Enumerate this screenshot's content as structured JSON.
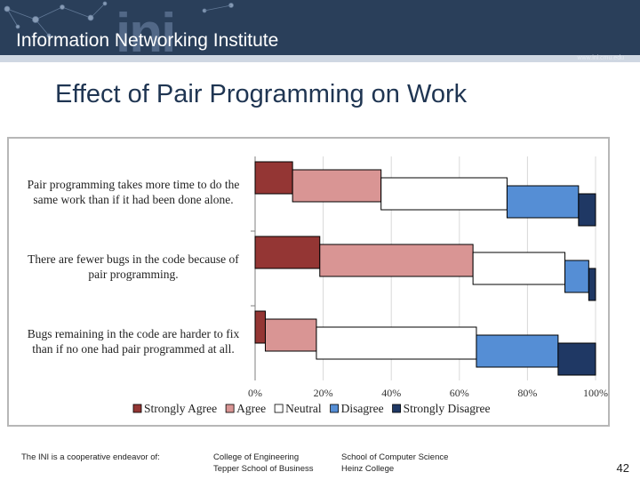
{
  "header": {
    "logo_text": "ini",
    "institute": "Information Networking Institute",
    "url": "www.ini.cmu.edu"
  },
  "slide": {
    "title": "Effect of Pair Programming on Work",
    "page_number": "42"
  },
  "footer": {
    "lead": "The INI is a cooperative endeavor of:",
    "col1": [
      "College of Engineering",
      "Tepper School of Business"
    ],
    "col2": [
      "School of Computer Science",
      "Heinz College"
    ]
  },
  "colors": {
    "banner": "#2a3f5a",
    "title": "#1f3552",
    "strongly_agree": "#943634",
    "agree": "#d99594",
    "neutral": "#ffffff",
    "disagree": "#558ed5",
    "strongly_disagree": "#1f3864"
  },
  "chart_data": {
    "type": "bar",
    "orientation": "horizontal",
    "stacked": true,
    "categories": [
      [
        "Pair programming takes more time to do the",
        "same work than if it had been done alone."
      ],
      [
        "There are fewer bugs in the code because of",
        "pair programming."
      ],
      [
        "Bugs remaining in the code are harder to fix",
        "than if no one had pair programmed at all."
      ]
    ],
    "series": [
      {
        "name": "Strongly Agree",
        "values": [
          11,
          19,
          3
        ]
      },
      {
        "name": "Agree",
        "values": [
          26,
          45,
          15
        ]
      },
      {
        "name": "Neutral",
        "values": [
          37,
          27,
          47
        ]
      },
      {
        "name": "Disagree",
        "values": [
          21,
          7,
          24
        ]
      },
      {
        "name": "Strongly Disagree",
        "values": [
          5,
          2,
          11
        ]
      }
    ],
    "xlim": [
      0,
      100
    ],
    "x_ticks": [
      "0%",
      "20%",
      "40%",
      "60%",
      "80%",
      "100%"
    ],
    "grid": true,
    "legend": "bottom"
  }
}
